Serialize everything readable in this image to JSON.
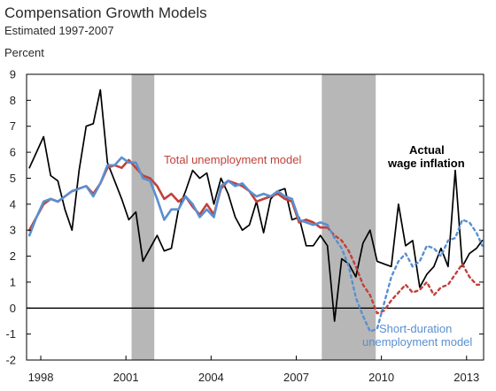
{
  "header": {
    "title": "Compensation Growth Models",
    "subtitle": "Estimated 1997-2007",
    "unit": "Percent"
  },
  "colors": {
    "actual": "#000000",
    "total": "#c0413b",
    "short": "#5a8fd0",
    "recession": "#b7b7b7"
  },
  "chart_data": {
    "type": "line",
    "title": "Compensation Growth Models",
    "subtitle": "Estimated 1997-2007",
    "ylabel": "Percent",
    "xlim": [
      1997.5,
      2013.6
    ],
    "ylim": [
      -2,
      9
    ],
    "yticks": [
      9,
      8,
      7,
      6,
      5,
      4,
      3,
      2,
      1,
      0,
      -1,
      -2
    ],
    "xticks": [
      1998,
      2001,
      2004,
      2007,
      2010,
      2013
    ],
    "zero_line": true,
    "recessions": [
      [
        2001.2,
        2002.0
      ],
      [
        2007.9,
        2009.8
      ]
    ],
    "annotations": {
      "total": "Total unemployment model",
      "actual_1": "Actual",
      "actual_2": "wage inflation",
      "short_1": "Short-duration",
      "short_2": "unemployment model"
    },
    "series": [
      {
        "name": "Actual wage inflation",
        "key": "actual",
        "dashed": false,
        "x": [
          1997.6,
          1997.85,
          1998.1,
          1998.35,
          1998.6,
          1998.85,
          1999.1,
          1999.35,
          1999.6,
          1999.85,
          2000.1,
          2000.35,
          2000.6,
          2000.85,
          2001.1,
          2001.35,
          2001.6,
          2001.85,
          2002.1,
          2002.35,
          2002.6,
          2002.85,
          2003.1,
          2003.35,
          2003.6,
          2003.85,
          2004.1,
          2004.35,
          2004.6,
          2004.85,
          2005.1,
          2005.35,
          2005.6,
          2005.85,
          2006.1,
          2006.35,
          2006.6,
          2006.85,
          2007.1,
          2007.35,
          2007.6,
          2007.85,
          2008.1,
          2008.35,
          2008.6,
          2008.85,
          2009.1,
          2009.35,
          2009.6,
          2009.85,
          2010.1,
          2010.35,
          2010.6,
          2010.85,
          2011.1,
          2011.35,
          2011.6,
          2011.85,
          2012.1,
          2012.35,
          2012.6,
          2012.85,
          2013.1,
          2013.35,
          2013.55
        ],
        "y": [
          5.4,
          6.0,
          6.6,
          5.1,
          4.9,
          3.8,
          3.0,
          5.3,
          7.0,
          7.1,
          8.4,
          5.6,
          4.9,
          4.2,
          3.4,
          3.7,
          1.8,
          2.3,
          2.8,
          2.2,
          2.3,
          3.8,
          4.5,
          5.3,
          5.0,
          5.2,
          4.0,
          5.0,
          4.4,
          3.5,
          3.0,
          3.2,
          4.1,
          2.9,
          4.2,
          4.5,
          4.6,
          3.4,
          3.5,
          2.4,
          2.4,
          2.8,
          2.4,
          -0.5,
          1.9,
          1.7,
          1.2,
          2.5,
          3.0,
          1.8,
          1.7,
          1.6,
          4.0,
          2.4,
          2.6,
          0.8,
          1.3,
          1.6,
          2.3,
          1.6,
          5.3,
          1.6,
          2.1,
          2.3,
          2.6
        ]
      },
      {
        "name": "Total unemployment model",
        "key": "total",
        "dashed": false,
        "x": [
          1997.6,
          1997.85,
          1998.1,
          1998.35,
          1998.6,
          1998.85,
          1999.1,
          1999.35,
          1999.6,
          1999.85,
          2000.1,
          2000.35,
          2000.6,
          2000.85,
          2001.1,
          2001.35,
          2001.6,
          2001.85,
          2002.1,
          2002.35,
          2002.6,
          2002.85,
          2003.1,
          2003.35,
          2003.6,
          2003.85,
          2004.1,
          2004.35,
          2004.6,
          2004.85,
          2005.1,
          2005.35,
          2005.6,
          2005.85,
          2006.1,
          2006.35,
          2006.6,
          2006.85,
          2007.1,
          2007.35,
          2007.6,
          2007.85,
          2008.1
        ],
        "y": [
          3.0,
          3.5,
          4.0,
          4.2,
          4.1,
          4.3,
          4.5,
          4.6,
          4.7,
          4.4,
          4.8,
          5.4,
          5.5,
          5.4,
          5.7,
          5.4,
          5.1,
          5.0,
          4.7,
          4.2,
          4.4,
          4.1,
          4.3,
          3.9,
          3.6,
          4.0,
          3.6,
          4.6,
          4.9,
          4.8,
          4.7,
          4.5,
          4.1,
          4.2,
          4.3,
          4.4,
          4.2,
          4.1,
          3.3,
          3.4,
          3.3,
          3.1,
          3.1
        ]
      },
      {
        "name": "Total unemployment model (projection)",
        "key": "total",
        "dashed": true,
        "x": [
          2008.1,
          2008.35,
          2008.6,
          2008.85,
          2009.1,
          2009.35,
          2009.6,
          2009.85,
          2010.1,
          2010.35,
          2010.6,
          2010.85,
          2011.1,
          2011.35,
          2011.6,
          2011.85,
          2012.1,
          2012.35,
          2012.6,
          2012.85,
          2013.1,
          2013.35,
          2013.55
        ],
        "y": [
          3.1,
          2.8,
          2.6,
          2.2,
          1.6,
          0.9,
          0.5,
          -0.2,
          -0.1,
          0.3,
          0.6,
          0.9,
          0.6,
          0.7,
          1.0,
          0.5,
          0.8,
          0.9,
          1.3,
          1.7,
          1.2,
          0.9,
          0.9
        ]
      },
      {
        "name": "Short-duration unemployment model",
        "key": "short",
        "dashed": false,
        "x": [
          1997.6,
          1997.85,
          1998.1,
          1998.35,
          1998.6,
          1998.85,
          1999.1,
          1999.35,
          1999.6,
          1999.85,
          2000.1,
          2000.35,
          2000.6,
          2000.85,
          2001.1,
          2001.35,
          2001.6,
          2001.85,
          2002.1,
          2002.35,
          2002.6,
          2002.85,
          2003.1,
          2003.35,
          2003.6,
          2003.85,
          2004.1,
          2004.35,
          2004.6,
          2004.85,
          2005.1,
          2005.35,
          2005.6,
          2005.85,
          2006.1,
          2006.35,
          2006.6,
          2006.85,
          2007.1,
          2007.35,
          2007.6,
          2007.85,
          2008.1
        ],
        "y": [
          2.8,
          3.5,
          4.1,
          4.2,
          4.1,
          4.3,
          4.5,
          4.6,
          4.7,
          4.3,
          4.8,
          5.5,
          5.5,
          5.8,
          5.6,
          5.6,
          5.0,
          4.9,
          4.2,
          3.4,
          3.8,
          3.8,
          4.3,
          4.0,
          3.5,
          3.8,
          3.5,
          4.7,
          4.9,
          4.7,
          4.8,
          4.5,
          4.3,
          4.4,
          4.3,
          4.5,
          4.3,
          4.2,
          3.4,
          3.3,
          3.2,
          3.3,
          3.2
        ]
      },
      {
        "name": "Short-duration unemployment model (projection)",
        "key": "short",
        "dashed": true,
        "x": [
          2008.1,
          2008.35,
          2008.6,
          2008.85,
          2009.1,
          2009.35,
          2009.6,
          2009.85,
          2010.1,
          2010.35,
          2010.6,
          2010.85,
          2011.1,
          2011.35,
          2011.6,
          2011.85,
          2012.1,
          2012.35,
          2012.6,
          2012.85,
          2013.1,
          2013.35,
          2013.55
        ],
        "y": [
          3.2,
          2.7,
          2.3,
          1.6,
          0.4,
          -0.3,
          -0.9,
          -0.8,
          0.2,
          1.2,
          1.8,
          2.1,
          1.6,
          1.8,
          2.4,
          2.3,
          2.0,
          2.6,
          2.7,
          3.4,
          3.3,
          2.9,
          2.4
        ]
      }
    ]
  }
}
